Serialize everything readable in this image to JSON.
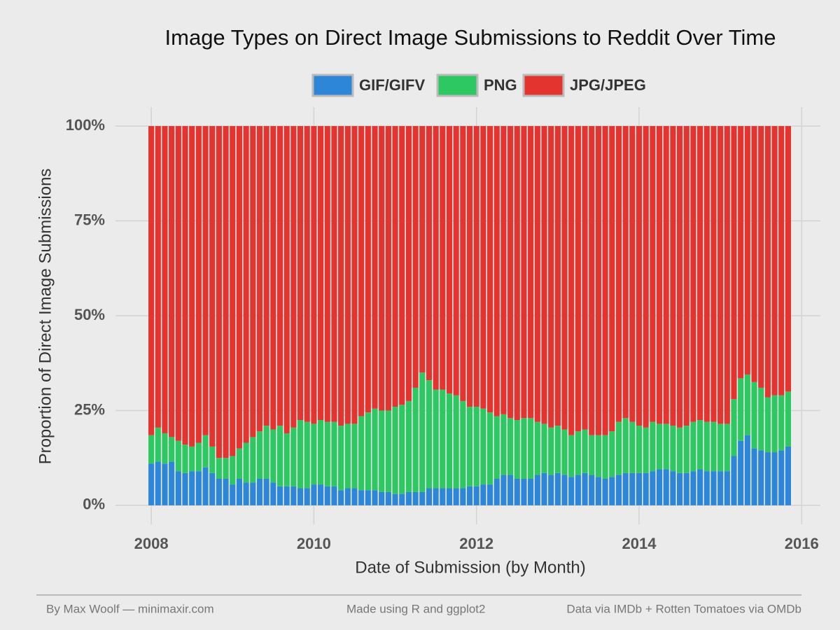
{
  "chart_data": {
    "type": "stacked_bar",
    "title": "Image Types on Direct Image Submissions to Reddit Over Time",
    "x_label": "Date of Submission (by Month)",
    "y_label": "Proportion of Direct Image Submissions",
    "footer": [
      "By Max Woolf — minimaxir.com",
      "Made using R and ggplot2",
      "Data via IMDb + Rotten Tomatoes via OMDb"
    ],
    "x": [
      "2008-01",
      "2008-02",
      "2008-03",
      "2008-04",
      "2008-05",
      "2008-06",
      "2008-07",
      "2008-08",
      "2008-09",
      "2008-10",
      "2008-11",
      "2008-12",
      "2009-01",
      "2009-02",
      "2009-03",
      "2009-04",
      "2009-05",
      "2009-06",
      "2009-07",
      "2009-08",
      "2009-09",
      "2009-10",
      "2009-11",
      "2009-12",
      "2010-01",
      "2010-02",
      "2010-03",
      "2010-04",
      "2010-05",
      "2010-06",
      "2010-07",
      "2010-08",
      "2010-09",
      "2010-10",
      "2010-11",
      "2010-12",
      "2011-01",
      "2011-02",
      "2011-03",
      "2011-04",
      "2011-05",
      "2011-06",
      "2011-07",
      "2011-08",
      "2011-09",
      "2011-10",
      "2011-11",
      "2011-12",
      "2012-01",
      "2012-02",
      "2012-03",
      "2012-04",
      "2012-05",
      "2012-06",
      "2012-07",
      "2012-08",
      "2012-09",
      "2012-10",
      "2012-11",
      "2012-12",
      "2013-01",
      "2013-02",
      "2013-03",
      "2013-04",
      "2013-05",
      "2013-06",
      "2013-07",
      "2013-08",
      "2013-09",
      "2013-10",
      "2013-11",
      "2013-12",
      "2014-01",
      "2014-02",
      "2014-03",
      "2014-04",
      "2014-05",
      "2014-06",
      "2014-07",
      "2014-08",
      "2014-09",
      "2014-10",
      "2014-11",
      "2014-12",
      "2015-01",
      "2015-02",
      "2015-03",
      "2015-04",
      "2015-05",
      "2015-06",
      "2015-07",
      "2015-08",
      "2015-09",
      "2015-10",
      "2015-11"
    ],
    "series": [
      {
        "name": "GIF/GIFV",
        "color": "#2e86d9",
        "values": [
          11,
          11.5,
          11,
          11.5,
          9,
          8.5,
          9,
          9,
          10,
          8.5,
          7,
          7,
          5.5,
          7,
          6,
          6,
          7,
          7,
          6,
          5,
          5,
          5,
          4.5,
          4.5,
          5.5,
          5.5,
          5,
          5,
          4,
          4.5,
          4.5,
          4,
          4,
          4,
          3.5,
          3.5,
          3,
          3,
          3.5,
          3.5,
          3.5,
          4.5,
          4.5,
          4.5,
          4.5,
          4.5,
          4.5,
          5,
          5,
          5.5,
          5.5,
          7,
          8,
          8,
          7,
          7,
          7,
          8,
          8.5,
          8,
          8.5,
          8,
          7.5,
          8,
          8.5,
          8,
          7.5,
          7,
          7.5,
          8,
          8.5,
          8.5,
          8.5,
          8.5,
          9,
          9.5,
          9.5,
          9,
          8.5,
          8.5,
          9,
          9.5,
          9,
          9,
          9,
          9,
          13,
          17,
          18.5,
          15,
          14.5,
          14,
          14,
          14.5,
          15.5
        ]
      },
      {
        "name": "PNG",
        "color": "#2ec862",
        "values": [
          7.5,
          9,
          8,
          6.5,
          8,
          7.5,
          6.5,
          7.5,
          8.5,
          7,
          5.5,
          5.5,
          7.5,
          8,
          10.5,
          12,
          12.5,
          14,
          14,
          16,
          14,
          15.5,
          18,
          17.5,
          16,
          17,
          17,
          17,
          17,
          17,
          17,
          19.5,
          20.5,
          21.5,
          21.5,
          21.5,
          23,
          23.5,
          24,
          27.5,
          31.5,
          28.5,
          26,
          26,
          25,
          24.5,
          23,
          21,
          21,
          20,
          19,
          16.5,
          16,
          15,
          15.5,
          16,
          16,
          14,
          13,
          12.5,
          12.5,
          12,
          11,
          11.5,
          11.5,
          10.5,
          11,
          11.5,
          12,
          14,
          14.5,
          13.5,
          12.5,
          12,
          13,
          12,
          12,
          12,
          12,
          12.5,
          13,
          13,
          13,
          13,
          12.5,
          12.5,
          15,
          16.5,
          16,
          17.5,
          16.5,
          14.5,
          15,
          14.5,
          14.5
        ]
      },
      {
        "name": "JPG/JPEG",
        "color": "#e3342f",
        "values": [
          81.5,
          79.5,
          81,
          82,
          83,
          84,
          84.5,
          83.5,
          81.5,
          84.5,
          87.5,
          87.5,
          87,
          85,
          83.5,
          82,
          80.5,
          79,
          80,
          79,
          81,
          79.5,
          77.5,
          78,
          78.5,
          77.5,
          78,
          78,
          79,
          78.5,
          78.5,
          76.5,
          75.5,
          74.5,
          75,
          75,
          74,
          73.5,
          72.5,
          69,
          65,
          67,
          69.5,
          69.5,
          70.5,
          71,
          72.5,
          74,
          74,
          74.5,
          75.5,
          76.5,
          76,
          77,
          77.5,
          77,
          77,
          78,
          78.5,
          79.5,
          79,
          80,
          81.5,
          80.5,
          80,
          81.5,
          81.5,
          81.5,
          80.5,
          78,
          77,
          78,
          79,
          79.5,
          78,
          78.5,
          78.5,
          79,
          79.5,
          79,
          78,
          77.5,
          78,
          78,
          78.5,
          78.5,
          72,
          66.5,
          65.5,
          67.5,
          69,
          71.5,
          71,
          71,
          70
        ]
      }
    ],
    "xlim": [
      2007.56,
      2016.23
    ],
    "xticks": [
      2008,
      2010,
      2012,
      2014,
      2016
    ],
    "ylim": [
      -5,
      105
    ],
    "yticks": [
      {
        "value": 0,
        "label": "0%"
      },
      {
        "value": 25,
        "label": "25%"
      },
      {
        "value": 50,
        "label": "50%"
      },
      {
        "value": 75,
        "label": "75%"
      },
      {
        "value": 100,
        "label": "100%"
      }
    ],
    "grid": true,
    "legend": "top"
  }
}
